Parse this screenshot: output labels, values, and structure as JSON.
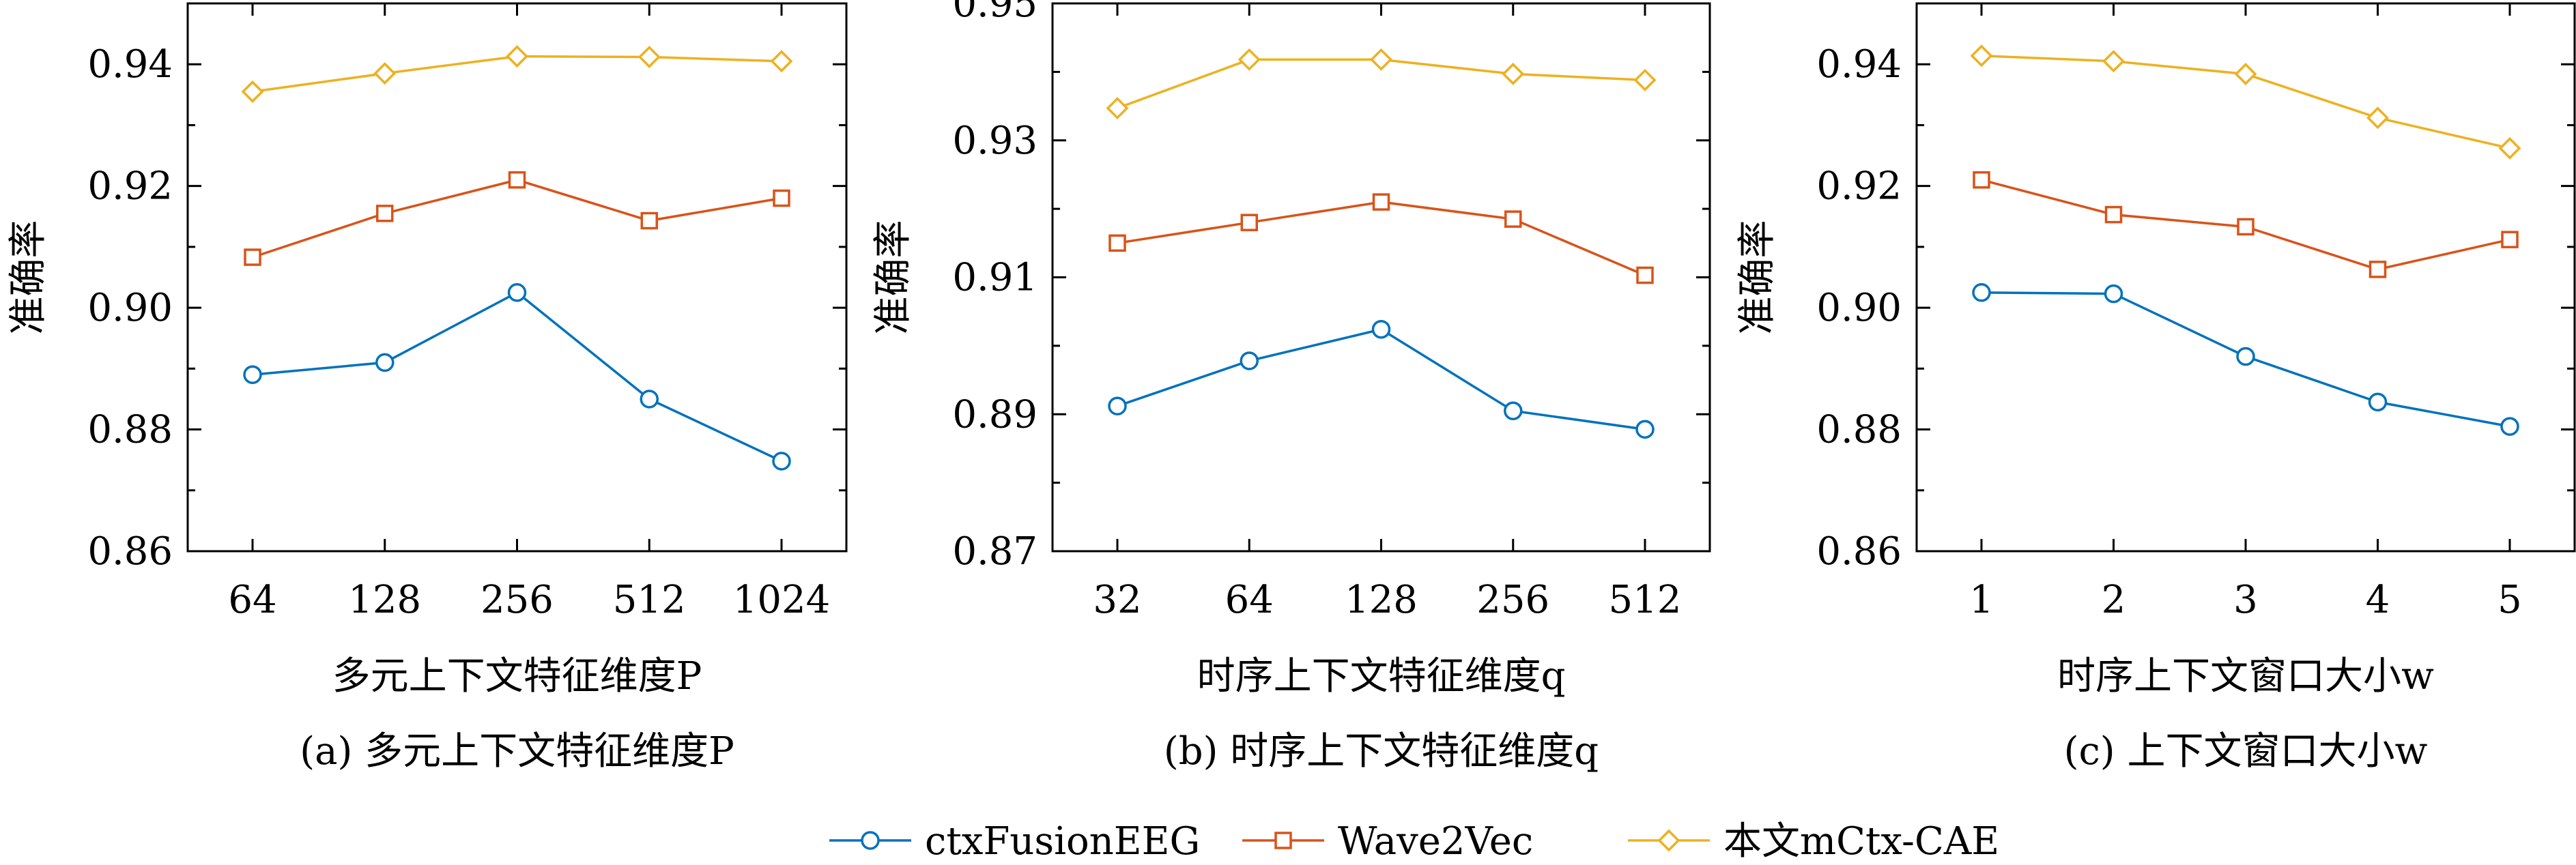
{
  "colors": {
    "ctxFusionEEG": "#0072bd",
    "Wave2Vec": "#d95319",
    "mCtxCAE": "#edb120"
  },
  "legend": {
    "items": [
      {
        "label": "ctxFusionEEG",
        "marker": "circle",
        "color": "#0072bd"
      },
      {
        "label": "Wave2Vec",
        "marker": "square",
        "color": "#d95319"
      },
      {
        "label": "本文mCtx-CAE",
        "marker": "diamond",
        "color": "#edb120"
      }
    ]
  },
  "chart_data": [
    {
      "type": "line",
      "caption": "(a) 多元上下文特征维度P",
      "xlabel": "多元上下文特征维度P",
      "ylabel": "准确率",
      "categories": [
        "64",
        "128",
        "256",
        "512",
        "1024"
      ],
      "ylim": [
        0.86,
        0.95
      ],
      "yticks": [
        0.86,
        0.88,
        0.9,
        0.92,
        0.94
      ],
      "ytick_labels": [
        "0.86",
        "0.88",
        "0.90",
        "0.92",
        "0.94"
      ],
      "series": [
        {
          "name": "ctxFusionEEG",
          "marker": "circle",
          "values": [
            0.889,
            0.891,
            0.9025,
            0.885,
            0.8748
          ]
        },
        {
          "name": "Wave2Vec",
          "marker": "square",
          "values": [
            0.9083,
            0.9155,
            0.921,
            0.9143,
            0.918
          ]
        },
        {
          "name": "本文mCtx-CAE",
          "marker": "diamond",
          "values": [
            0.9355,
            0.9385,
            0.9413,
            0.9412,
            0.9405
          ]
        }
      ]
    },
    {
      "type": "line",
      "caption": "(b) 时序上下文特征维度q",
      "xlabel": "时序上下文特征维度q",
      "ylabel": "准确率",
      "categories": [
        "32",
        "64",
        "128",
        "256",
        "512"
      ],
      "ylim": [
        0.87,
        0.95
      ],
      "yticks": [
        0.87,
        0.89,
        0.91,
        0.93,
        0.95
      ],
      "ytick_labels": [
        "0.87",
        "0.89",
        "0.91",
        "0.93",
        "0.95"
      ],
      "series": [
        {
          "name": "ctxFusionEEG",
          "marker": "circle",
          "values": [
            0.8912,
            0.8978,
            0.9024,
            0.8905,
            0.8878
          ]
        },
        {
          "name": "Wave2Vec",
          "marker": "square",
          "values": [
            0.915,
            0.918,
            0.921,
            0.9185,
            0.9103
          ]
        },
        {
          "name": "本文mCtx-CAE",
          "marker": "diamond",
          "values": [
            0.9347,
            0.9418,
            0.9418,
            0.9397,
            0.9388
          ]
        }
      ]
    },
    {
      "type": "line",
      "caption": "(c) 上下文窗口大小w",
      "xlabel": "时序上下文窗口大小w",
      "ylabel": "准确率",
      "categories": [
        "1",
        "2",
        "3",
        "4",
        "5"
      ],
      "ylim": [
        0.86,
        0.95
      ],
      "yticks": [
        0.86,
        0.88,
        0.9,
        0.92,
        0.94
      ],
      "ytick_labels": [
        "0.86",
        "0.88",
        "0.90",
        "0.92",
        "0.94"
      ],
      "series": [
        {
          "name": "ctxFusionEEG",
          "marker": "circle",
          "values": [
            0.9025,
            0.9023,
            0.892,
            0.8845,
            0.8805
          ]
        },
        {
          "name": "Wave2Vec",
          "marker": "square",
          "values": [
            0.921,
            0.9153,
            0.9133,
            0.9063,
            0.9112
          ]
        },
        {
          "name": "本文mCtx-CAE",
          "marker": "diamond",
          "values": [
            0.9414,
            0.9405,
            0.9384,
            0.9312,
            0.9262
          ]
        }
      ]
    }
  ]
}
